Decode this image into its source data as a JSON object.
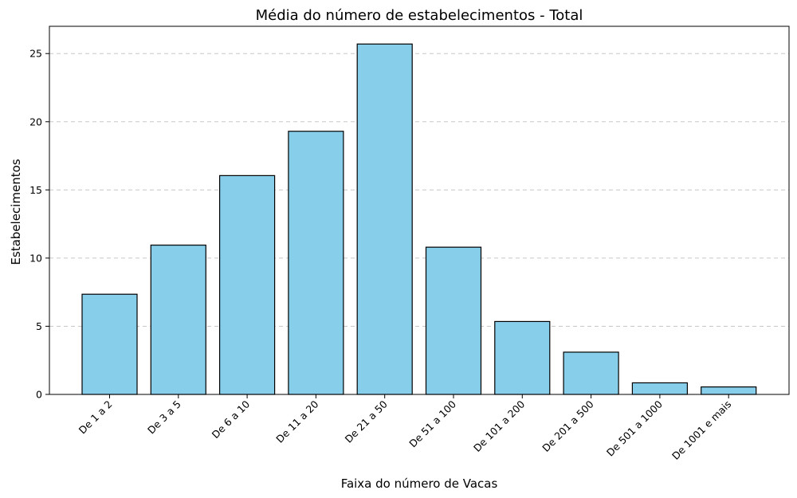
{
  "chart_data": {
    "type": "bar",
    "title": "Média do número de estabelecimentos - Total",
    "xlabel": "Faixa do número de Vacas",
    "ylabel": "Estabelecimentos",
    "categories": [
      "De 1 a 2",
      "De 3 a 5",
      "De 6 a 10",
      "De 11 a 20",
      "De 21 a 50",
      "De 51 a 100",
      "De 101 a 200",
      "De 201 a 500",
      "De 501 a 1000",
      "De 1001 e mais"
    ],
    "values": [
      7.35,
      10.95,
      16.05,
      19.3,
      25.7,
      10.8,
      5.35,
      3.1,
      0.85,
      0.55
    ],
    "ylim": [
      0,
      27
    ],
    "yticks": [
      0,
      5,
      10,
      15,
      20,
      25
    ],
    "grid": "y-dashed",
    "legend": "none",
    "colors": {
      "bar": "#87ceeb",
      "edge": "#000000",
      "grid": "#c8c8c8"
    }
  }
}
